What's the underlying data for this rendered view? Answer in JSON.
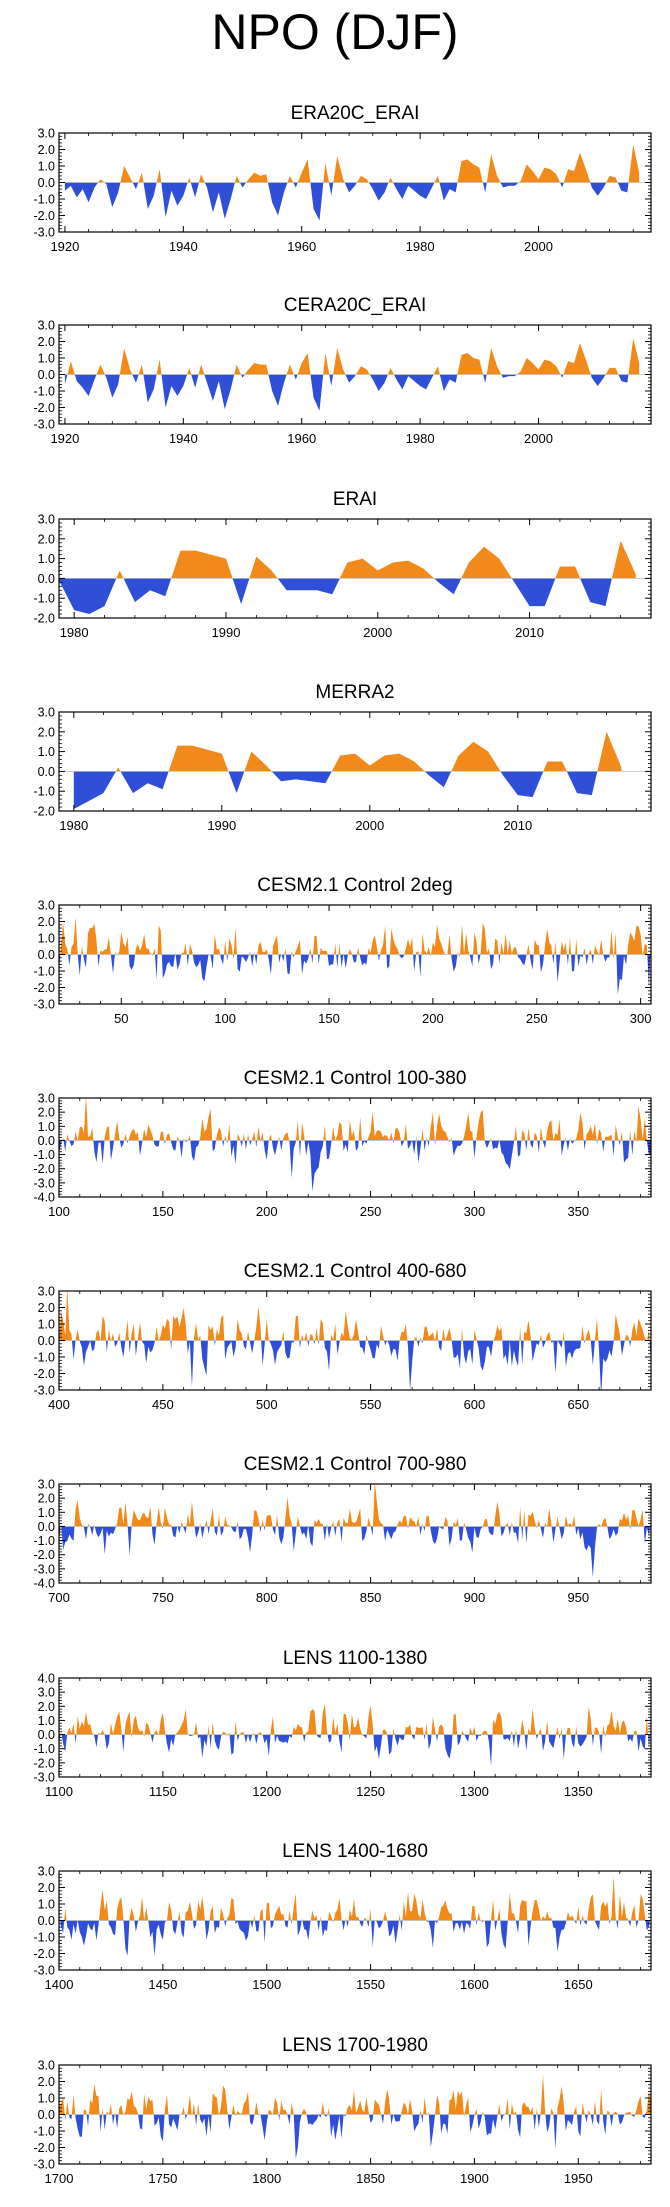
{
  "page_title": "NPO (DJF)",
  "colors": {
    "positive": "#f28a1b",
    "negative": "#2f4fd9",
    "axis": "#000000"
  },
  "chart_data": [
    {
      "type": "area",
      "title": "ERA20C_ERAI",
      "xlim": [
        1919,
        2019
      ],
      "ylim": [
        -3,
        3
      ],
      "yticks": [
        3.0,
        2.0,
        1.0,
        0.0,
        -1.0,
        -2.0,
        -3.0
      ],
      "ytick_labels": [
        "3.0",
        "2.0",
        "1.0",
        "0.0",
        "-1.0",
        "-2.0",
        "-3.0"
      ],
      "xticks": [
        1920,
        1940,
        1960,
        1980,
        2000
      ],
      "xtick_labels": [
        "1920",
        "1940",
        "1960",
        "1980",
        "2000"
      ],
      "x": [
        1920,
        1921,
        1922,
        1923,
        1924,
        1925,
        1926,
        1927,
        1928,
        1929,
        1930,
        1931,
        1932,
        1933,
        1934,
        1935,
        1936,
        1937,
        1938,
        1939,
        1940,
        1941,
        1942,
        1943,
        1944,
        1945,
        1946,
        1947,
        1948,
        1949,
        1950,
        1951,
        1952,
        1953,
        1954,
        1955,
        1956,
        1957,
        1958,
        1959,
        1960,
        1961,
        1962,
        1963,
        1964,
        1965,
        1966,
        1967,
        1968,
        1969,
        1970,
        1971,
        1972,
        1973,
        1974,
        1975,
        1976,
        1977,
        1978,
        1979,
        1980,
        1981,
        1982,
        1983,
        1984,
        1985,
        1986,
        1987,
        1988,
        1989,
        1990,
        1991,
        1992,
        1993,
        1994,
        1995,
        1996,
        1997,
        1998,
        1999,
        2000,
        2001,
        2002,
        2003,
        2004,
        2005,
        2006,
        2007,
        2008,
        2009,
        2010,
        2011,
        2012,
        2013,
        2014,
        2015,
        2016,
        2017
      ],
      "values": [
        -0.5,
        -0.2,
        -0.9,
        -0.4,
        -1.2,
        -0.3,
        0.2,
        -0.1,
        -1.5,
        -0.6,
        1.0,
        0.3,
        -0.4,
        0.6,
        -1.6,
        -0.8,
        0.8,
        -2.1,
        -0.5,
        -1.4,
        -0.8,
        0.3,
        -0.9,
        0.5,
        -0.3,
        -1.8,
        -0.6,
        -2.2,
        -1.0,
        0.4,
        -0.3,
        0.2,
        0.6,
        0.4,
        0.5,
        -1.2,
        -2.0,
        -0.6,
        0.4,
        -0.3,
        0.6,
        1.4,
        -1.6,
        -2.3,
        1.2,
        -0.8,
        1.6,
        0.2,
        -0.6,
        -0.2,
        0.4,
        0.2,
        -0.4,
        -1.1,
        -0.6,
        0.3,
        -0.4,
        -1.0,
        -0.2,
        -0.5,
        -0.8,
        -1.0,
        -0.3,
        0.4,
        -1.1,
        -0.4,
        -0.6,
        1.3,
        1.4,
        1.1,
        0.9,
        -0.6,
        1.7,
        0.4,
        -0.3,
        -0.2,
        -0.2,
        0.1,
        1.1,
        0.7,
        0.2,
        0.9,
        0.8,
        0.5,
        -0.3,
        0.8,
        0.7,
        1.8,
        0.8,
        -0.3,
        -0.8,
        -0.3,
        0.4,
        0.3,
        -0.5,
        -0.6,
        2.3,
        0.6
      ]
    },
    {
      "type": "area",
      "title": "CERA20C_ERAI",
      "xlim": [
        1919,
        2019
      ],
      "ylim": [
        -3,
        3
      ],
      "yticks": [
        3.0,
        2.0,
        1.0,
        0.0,
        -1.0,
        -2.0,
        -3.0
      ],
      "ytick_labels": [
        "3.0",
        "2.0",
        "1.0",
        "0.0",
        "-1.0",
        "-2.0",
        "-3.0"
      ],
      "xticks": [
        1920,
        1940,
        1960,
        1980,
        2000
      ],
      "xtick_labels": [
        "1920",
        "1940",
        "1960",
        "1980",
        "2000"
      ],
      "x": [
        1920,
        1921,
        1922,
        1923,
        1924,
        1925,
        1926,
        1927,
        1928,
        1929,
        1930,
        1931,
        1932,
        1933,
        1934,
        1935,
        1936,
        1937,
        1938,
        1939,
        1940,
        1941,
        1942,
        1943,
        1944,
        1945,
        1946,
        1947,
        1948,
        1949,
        1950,
        1951,
        1952,
        1953,
        1954,
        1955,
        1956,
        1957,
        1958,
        1959,
        1960,
        1961,
        1962,
        1963,
        1964,
        1965,
        1966,
        1967,
        1968,
        1969,
        1970,
        1971,
        1972,
        1973,
        1974,
        1975,
        1976,
        1977,
        1978,
        1979,
        1980,
        1981,
        1982,
        1983,
        1984,
        1985,
        1986,
        1987,
        1988,
        1989,
        1990,
        1991,
        1992,
        1993,
        1994,
        1995,
        1996,
        1997,
        1998,
        1999,
        2000,
        2001,
        2002,
        2003,
        2004,
        2005,
        2006,
        2007,
        2008,
        2009,
        2010,
        2011,
        2012,
        2013,
        2014,
        2015,
        2016,
        2017
      ],
      "values": [
        -0.6,
        0.8,
        -0.4,
        -0.8,
        -1.3,
        -0.3,
        0.6,
        -0.2,
        -1.4,
        -0.6,
        1.6,
        0.3,
        -0.5,
        0.6,
        -1.7,
        -0.9,
        0.9,
        -2.0,
        -0.7,
        -1.3,
        -0.7,
        0.4,
        -0.8,
        0.6,
        -0.5,
        -1.6,
        -0.4,
        -2.1,
        -0.9,
        0.6,
        -0.2,
        0.3,
        0.7,
        0.6,
        0.6,
        -1.0,
        -1.9,
        -0.5,
        0.6,
        -0.3,
        0.7,
        1.3,
        -1.4,
        -2.2,
        1.3,
        -0.7,
        1.6,
        0.3,
        -0.5,
        -0.1,
        0.5,
        0.3,
        -0.3,
        -1.0,
        -0.5,
        0.4,
        -0.3,
        -0.9,
        -0.1,
        -0.4,
        -0.7,
        -0.9,
        -0.2,
        0.5,
        -1.0,
        -0.3,
        -0.5,
        1.2,
        1.3,
        1.0,
        0.9,
        -0.5,
        1.6,
        0.5,
        -0.2,
        -0.1,
        -0.1,
        0.2,
        1.0,
        0.7,
        0.3,
        0.9,
        0.8,
        0.5,
        -0.2,
        0.8,
        0.7,
        1.9,
        0.9,
        -0.2,
        -0.7,
        -0.2,
        0.4,
        0.4,
        -0.4,
        -0.5,
        2.2,
        0.7
      ]
    },
    {
      "type": "area",
      "title": "ERAI",
      "xlim": [
        1979,
        2018
      ],
      "ylim": [
        -2,
        3
      ],
      "yticks": [
        3.0,
        2.0,
        1.0,
        0.0,
        -1.0,
        -2.0
      ],
      "ytick_labels": [
        "3.0",
        "2.0",
        "1.0",
        "0.0",
        "-1.0",
        "-2.0"
      ],
      "xticks": [
        1980,
        1990,
        2000,
        2010
      ],
      "xtick_labels": [
        "1980",
        "1990",
        "2000",
        "2010"
      ],
      "x": [
        1979,
        1980,
        1981,
        1982,
        1983,
        1984,
        1985,
        1986,
        1987,
        1988,
        1989,
        1990,
        1991,
        1992,
        1993,
        1994,
        1995,
        1996,
        1997,
        1998,
        1999,
        2000,
        2001,
        2002,
        2003,
        2004,
        2005,
        2006,
        2007,
        2008,
        2009,
        2010,
        2011,
        2012,
        2013,
        2014,
        2015,
        2016,
        2017
      ],
      "values": [
        -0.1,
        -1.6,
        -1.8,
        -1.4,
        0.4,
        -1.2,
        -0.6,
        -0.9,
        1.4,
        1.4,
        1.2,
        1.0,
        -1.3,
        1.1,
        0.4,
        -0.6,
        -0.6,
        -0.6,
        -0.8,
        0.8,
        1.0,
        0.4,
        0.8,
        0.9,
        0.5,
        -0.2,
        -0.8,
        0.8,
        1.6,
        1.0,
        -0.2,
        -1.4,
        -1.4,
        0.6,
        0.6,
        -1.2,
        -1.4,
        1.9,
        0.2
      ]
    },
    {
      "type": "area",
      "title": "MERRA2",
      "xlim": [
        1979,
        2019
      ],
      "ylim": [
        -2,
        3
      ],
      "yticks": [
        3.0,
        2.0,
        1.0,
        0.0,
        -1.0,
        -2.0
      ],
      "ytick_labels": [
        "3.0",
        "2.0",
        "1.0",
        "0.0",
        "-1.0",
        "-2.0"
      ],
      "xticks": [
        1980,
        1990,
        2000,
        2010
      ],
      "xtick_labels": [
        "1980",
        "1990",
        "2000",
        "2010"
      ],
      "x": [
        1980,
        1981,
        1982,
        1983,
        1984,
        1985,
        1986,
        1987,
        1988,
        1989,
        1990,
        1991,
        1992,
        1993,
        1994,
        1995,
        1996,
        1997,
        1998,
        1999,
        2000,
        2001,
        2002,
        2003,
        2004,
        2005,
        2006,
        2007,
        2008,
        2009,
        2010,
        2011,
        2012,
        2013,
        2014,
        2015,
        2016,
        2017
      ],
      "values": [
        -1.9,
        -1.5,
        -1.1,
        0.2,
        -1.1,
        -0.6,
        -0.9,
        1.3,
        1.3,
        1.1,
        0.9,
        -1.1,
        1.0,
        0.3,
        -0.5,
        -0.4,
        -0.5,
        -0.6,
        0.8,
        0.9,
        0.3,
        0.8,
        0.9,
        0.5,
        -0.2,
        -0.8,
        0.8,
        1.5,
        1.0,
        -0.2,
        -1.2,
        -1.3,
        0.5,
        0.5,
        -1.1,
        -1.2,
        2.0,
        0.2
      ]
    },
    {
      "type": "area",
      "title": "CESM2.1 Control 2deg",
      "xlim": [
        20,
        305
      ],
      "ylim": [
        -3,
        3
      ],
      "yticks": [
        3.0,
        2.0,
        1.0,
        0.0,
        -1.0,
        -2.0,
        -3.0
      ],
      "ytick_labels": [
        "3.0",
        "2.0",
        "1.0",
        "0.0",
        "-1.0",
        "-2.0",
        "-3.0"
      ],
      "xticks": [
        50,
        100,
        150,
        200,
        250,
        300
      ],
      "xtick_labels": [
        "50",
        "100",
        "150",
        "200",
        "250",
        "300"
      ],
      "generated": {
        "start": 20,
        "end": 305,
        "seed": 11,
        "scale": 0.95,
        "amp": 1.0
      }
    },
    {
      "type": "area",
      "title": "CESM2.1 Control 100-380",
      "xlim": [
        100,
        385
      ],
      "ylim": [
        -4,
        3
      ],
      "yticks": [
        3.0,
        2.0,
        1.0,
        0.0,
        -1.0,
        -2.0,
        -3.0,
        -4.0
      ],
      "ytick_labels": [
        "3.0",
        "2.0",
        "1.0",
        "0.0",
        "-1.0",
        "-2.0",
        "-3.0",
        "-4.0"
      ],
      "xticks": [
        100,
        150,
        200,
        250,
        300,
        350
      ],
      "xtick_labels": [
        "100",
        "150",
        "200",
        "250",
        "300",
        "350"
      ],
      "generated": {
        "start": 100,
        "end": 385,
        "seed": 23,
        "scale": 0.95,
        "amp": 1.0
      }
    },
    {
      "type": "area",
      "title": "CESM2.1 Control 400-680",
      "xlim": [
        400,
        685
      ],
      "ylim": [
        -3,
        3
      ],
      "yticks": [
        3.0,
        2.0,
        1.0,
        0.0,
        -1.0,
        -2.0,
        -3.0
      ],
      "ytick_labels": [
        "3.0",
        "2.0",
        "1.0",
        "0.0",
        "-1.0",
        "-2.0",
        "-3.0"
      ],
      "xticks": [
        400,
        450,
        500,
        550,
        600,
        650
      ],
      "xtick_labels": [
        "400",
        "450",
        "500",
        "550",
        "600",
        "650"
      ],
      "generated": {
        "start": 400,
        "end": 685,
        "seed": 37,
        "scale": 0.95,
        "amp": 1.0
      }
    },
    {
      "type": "area",
      "title": "CESM2.1 Control 700-980",
      "xlim": [
        700,
        985
      ],
      "ylim": [
        -4,
        3
      ],
      "yticks": [
        3.0,
        2.0,
        1.0,
        0.0,
        -1.0,
        -2.0,
        -3.0,
        -4.0
      ],
      "ytick_labels": [
        "3.0",
        "2.0",
        "1.0",
        "0.0",
        "-1.0",
        "-2.0",
        "-3.0",
        "-4.0"
      ],
      "xticks": [
        700,
        750,
        800,
        850,
        900,
        950
      ],
      "xtick_labels": [
        "700",
        "750",
        "800",
        "850",
        "900",
        "950"
      ],
      "generated": {
        "start": 700,
        "end": 985,
        "seed": 51,
        "scale": 0.95,
        "amp": 1.0
      }
    },
    {
      "type": "area",
      "title": "LENS 1100-1380",
      "xlim": [
        1100,
        1385
      ],
      "ylim": [
        -3,
        4
      ],
      "yticks": [
        4.0,
        3.0,
        2.0,
        1.0,
        0.0,
        -1.0,
        -2.0,
        -3.0
      ],
      "ytick_labels": [
        "4.0",
        "3.0",
        "2.0",
        "1.0",
        "0.0",
        "-1.0",
        "-2.0",
        "-3.0"
      ],
      "xticks": [
        1100,
        1150,
        1200,
        1250,
        1300,
        1350
      ],
      "xtick_labels": [
        "1100",
        "1150",
        "1200",
        "1250",
        "1300",
        "1350"
      ],
      "generated": {
        "start": 1100,
        "end": 1385,
        "seed": 67,
        "scale": 0.95,
        "amp": 1.0
      }
    },
    {
      "type": "area",
      "title": "LENS 1400-1680",
      "xlim": [
        1400,
        1685
      ],
      "ylim": [
        -3,
        3
      ],
      "yticks": [
        3.0,
        2.0,
        1.0,
        0.0,
        -1.0,
        -2.0,
        -3.0
      ],
      "ytick_labels": [
        "3.0",
        "2.0",
        "1.0",
        "0.0",
        "-1.0",
        "-2.0",
        "-3.0"
      ],
      "xticks": [
        1400,
        1450,
        1500,
        1550,
        1600,
        1650
      ],
      "xtick_labels": [
        "1400",
        "1450",
        "1500",
        "1550",
        "1600",
        "1650"
      ],
      "generated": {
        "start": 1400,
        "end": 1685,
        "seed": 79,
        "scale": 0.95,
        "amp": 1.0
      }
    },
    {
      "type": "area",
      "title": "LENS 1700-1980",
      "xlim": [
        1700,
        1985
      ],
      "ylim": [
        -3,
        3
      ],
      "yticks": [
        3.0,
        2.0,
        1.0,
        0.0,
        -1.0,
        -2.0,
        -3.0
      ],
      "ytick_labels": [
        "3.0",
        "2.0",
        "1.0",
        "0.0",
        "-1.0",
        "-2.0",
        "-3.0"
      ],
      "xticks": [
        1700,
        1750,
        1800,
        1850,
        1900,
        1950
      ],
      "xtick_labels": [
        "1700",
        "1750",
        "1800",
        "1850",
        "1900",
        "1950"
      ],
      "generated": {
        "start": 1700,
        "end": 1985,
        "seed": 97,
        "scale": 0.95,
        "amp": 1.0
      }
    }
  ]
}
